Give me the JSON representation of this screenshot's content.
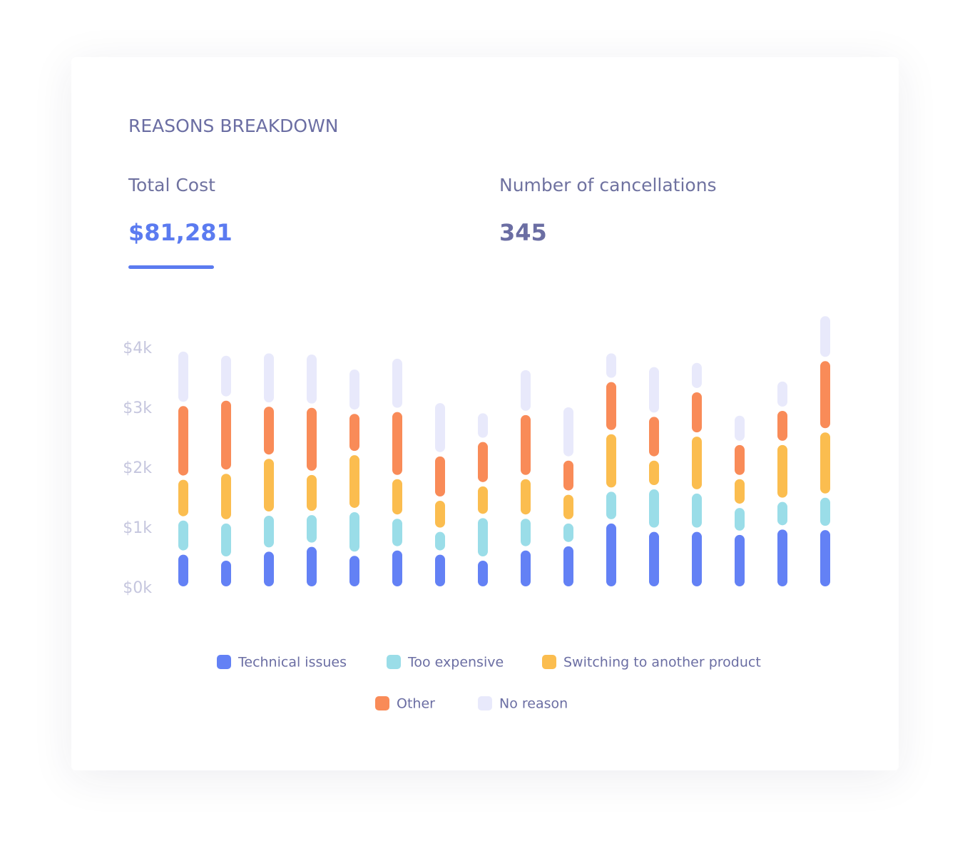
{
  "header": {
    "title": "REASONS BREAKDOWN",
    "metrics": [
      {
        "label": "Total Cost",
        "value": "$81,281"
      },
      {
        "label": "Number of cancellations",
        "value": "345"
      }
    ]
  },
  "chart_data": {
    "type": "stacked-bar",
    "categories": [
      null,
      null,
      null,
      null,
      null,
      null,
      null,
      null,
      null,
      null,
      null,
      null,
      null,
      null,
      null,
      null
    ],
    "series": [
      {
        "name": "Technical issues",
        "color": "#6381f5",
        "values": [
          0.6,
          0.5,
          0.65,
          0.73,
          0.58,
          0.67,
          0.6,
          0.5,
          0.67,
          0.74,
          1.12,
          0.98,
          0.98,
          0.93,
          1.02,
          1.01
        ]
      },
      {
        "name": "Too expensive",
        "color": "#9adde8",
        "values": [
          0.57,
          0.62,
          0.6,
          0.53,
          0.73,
          0.53,
          0.38,
          0.71,
          0.53,
          0.38,
          0.53,
          0.71,
          0.64,
          0.45,
          0.46,
          0.54
        ]
      },
      {
        "name": "Switching to another product",
        "color": "#fbbd4f",
        "values": [
          0.68,
          0.83,
          0.95,
          0.67,
          0.95,
          0.66,
          0.52,
          0.53,
          0.66,
          0.48,
          0.96,
          0.48,
          0.95,
          0.48,
          0.95,
          1.09
        ]
      },
      {
        "name": "Other",
        "color": "#f98b58",
        "values": [
          1.23,
          1.22,
          0.87,
          1.12,
          0.69,
          1.12,
          0.74,
          0.74,
          1.07,
          0.57,
          0.87,
          0.73,
          0.74,
          0.57,
          0.57,
          1.19
        ]
      },
      {
        "name": "No reason",
        "color": "#e8e9fb",
        "values": [
          0.91,
          0.75,
          0.89,
          0.89,
          0.74,
          0.89,
          0.89,
          0.48,
          0.75,
          0.89,
          0.48,
          0.83,
          0.49,
          0.49,
          0.49,
          0.75
        ]
      }
    ],
    "ylim": [
      0,
      4.6
    ],
    "yticks": [
      {
        "value": 0,
        "label": "$0k"
      },
      {
        "value": 1,
        "label": "$1k"
      },
      {
        "value": 2,
        "label": "$2k"
      },
      {
        "value": 3,
        "label": "$3k"
      },
      {
        "value": 4,
        "label": "$4k"
      }
    ],
    "grid": false
  }
}
